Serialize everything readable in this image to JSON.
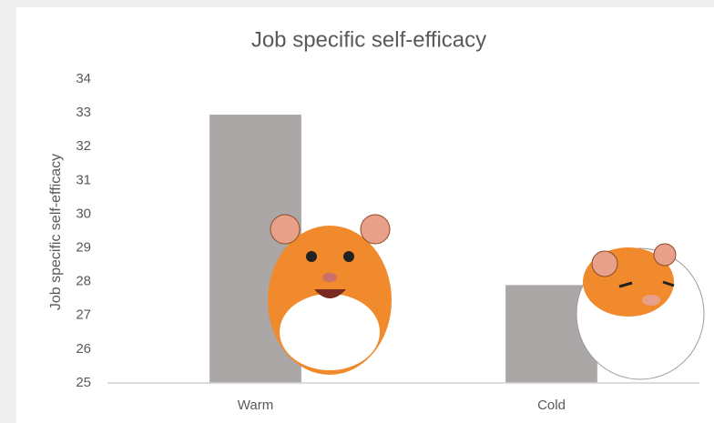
{
  "chart_data": {
    "type": "bar",
    "title": "Job specific self-efficacy",
    "y_label": "Job specific self-efficacy",
    "categories": [
      "Warm",
      "Cold"
    ],
    "values": [
      32.95,
      27.9
    ],
    "color": "#aba7a6",
    "ylim": [
      25,
      34
    ],
    "yticks": [
      25,
      26,
      27,
      28,
      29,
      30,
      31,
      32,
      33,
      34
    ]
  }
}
